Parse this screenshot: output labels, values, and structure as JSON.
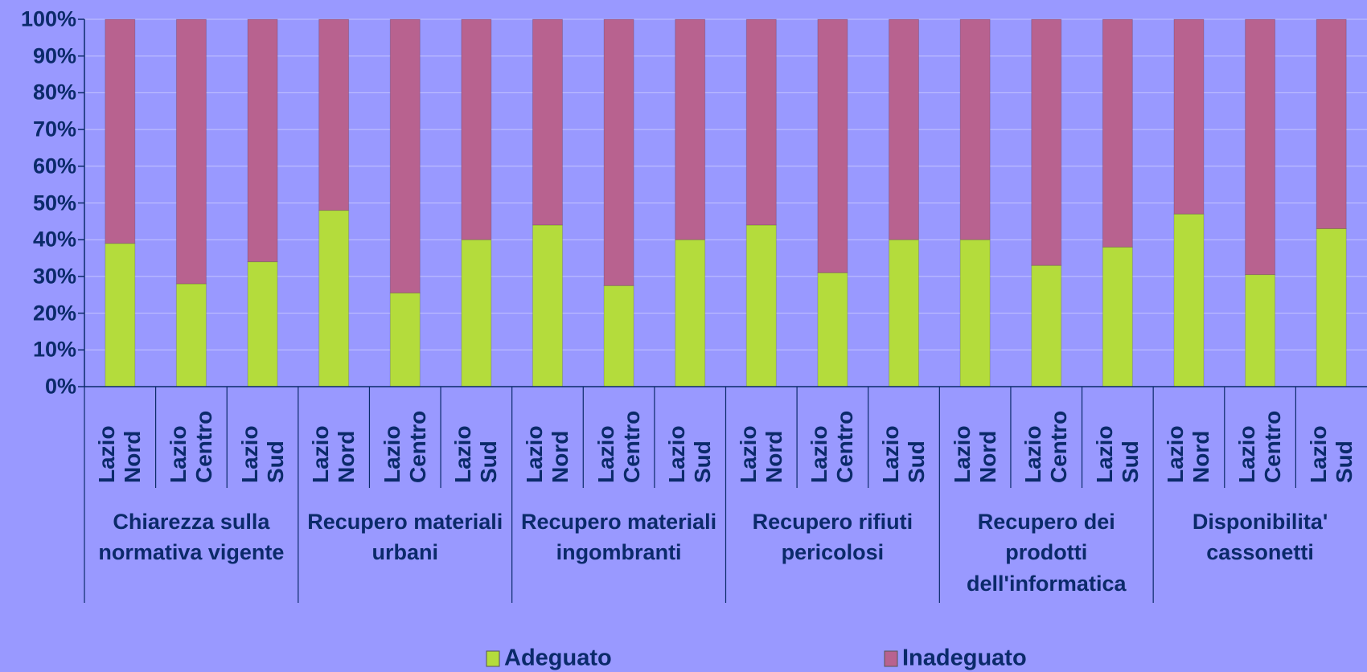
{
  "chart_data": {
    "type": "stacked_bar_100",
    "categories": [
      "Lazio Nord",
      "Lazio Centro",
      "Lazio Sud",
      "Lazio Nord",
      "Lazio Centro",
      "Lazio Sud",
      "Lazio Nord",
      "Lazio Centro",
      "Lazio Sud",
      "Lazio Nord",
      "Lazio Centro",
      "Lazio Sud",
      "Lazio Nord",
      "Lazio Centro",
      "Lazio Sud",
      "Lazio Nord",
      "Lazio Centro",
      "Lazio Sud"
    ],
    "group_labels": [
      "Chiarezza sulla normativa vigente",
      "Recupero materiali urbani",
      "Recupero materiali ingombranti",
      "Recupero rifiuti pericolosi",
      "Recupero dei prodotti dell'informatica",
      "Disponibilita' cassonetti"
    ],
    "series": [
      {
        "name": "Adeguato",
        "color": "#b4dc3c",
        "values": [
          39,
          28,
          34,
          48,
          25.5,
          40,
          44,
          27.5,
          40,
          44,
          31,
          40,
          40,
          33,
          38,
          47,
          30.5,
          43
        ]
      },
      {
        "name": "Inadeguato",
        "color": "#b8628f",
        "values": [
          61,
          72,
          66,
          52,
          74.5,
          60,
          56,
          72.5,
          60,
          56,
          69,
          60,
          60,
          67,
          62,
          53,
          69.5,
          57
        ]
      }
    ],
    "ylim": [
      0,
      100
    ],
    "yticks": [
      {
        "value": 0,
        "label": "0%"
      },
      {
        "value": 10,
        "label": "10%"
      },
      {
        "value": 20,
        "label": "20%"
      },
      {
        "value": 30,
        "label": "30%"
      },
      {
        "value": 40,
        "label": "40%"
      },
      {
        "value": 50,
        "label": "50%"
      },
      {
        "value": 60,
        "label": "60%"
      },
      {
        "value": 70,
        "label": "70%"
      },
      {
        "value": 80,
        "label": "80%"
      },
      {
        "value": 90,
        "label": "90%"
      },
      {
        "value": 100,
        "label": "100%"
      }
    ],
    "grid": true
  }
}
